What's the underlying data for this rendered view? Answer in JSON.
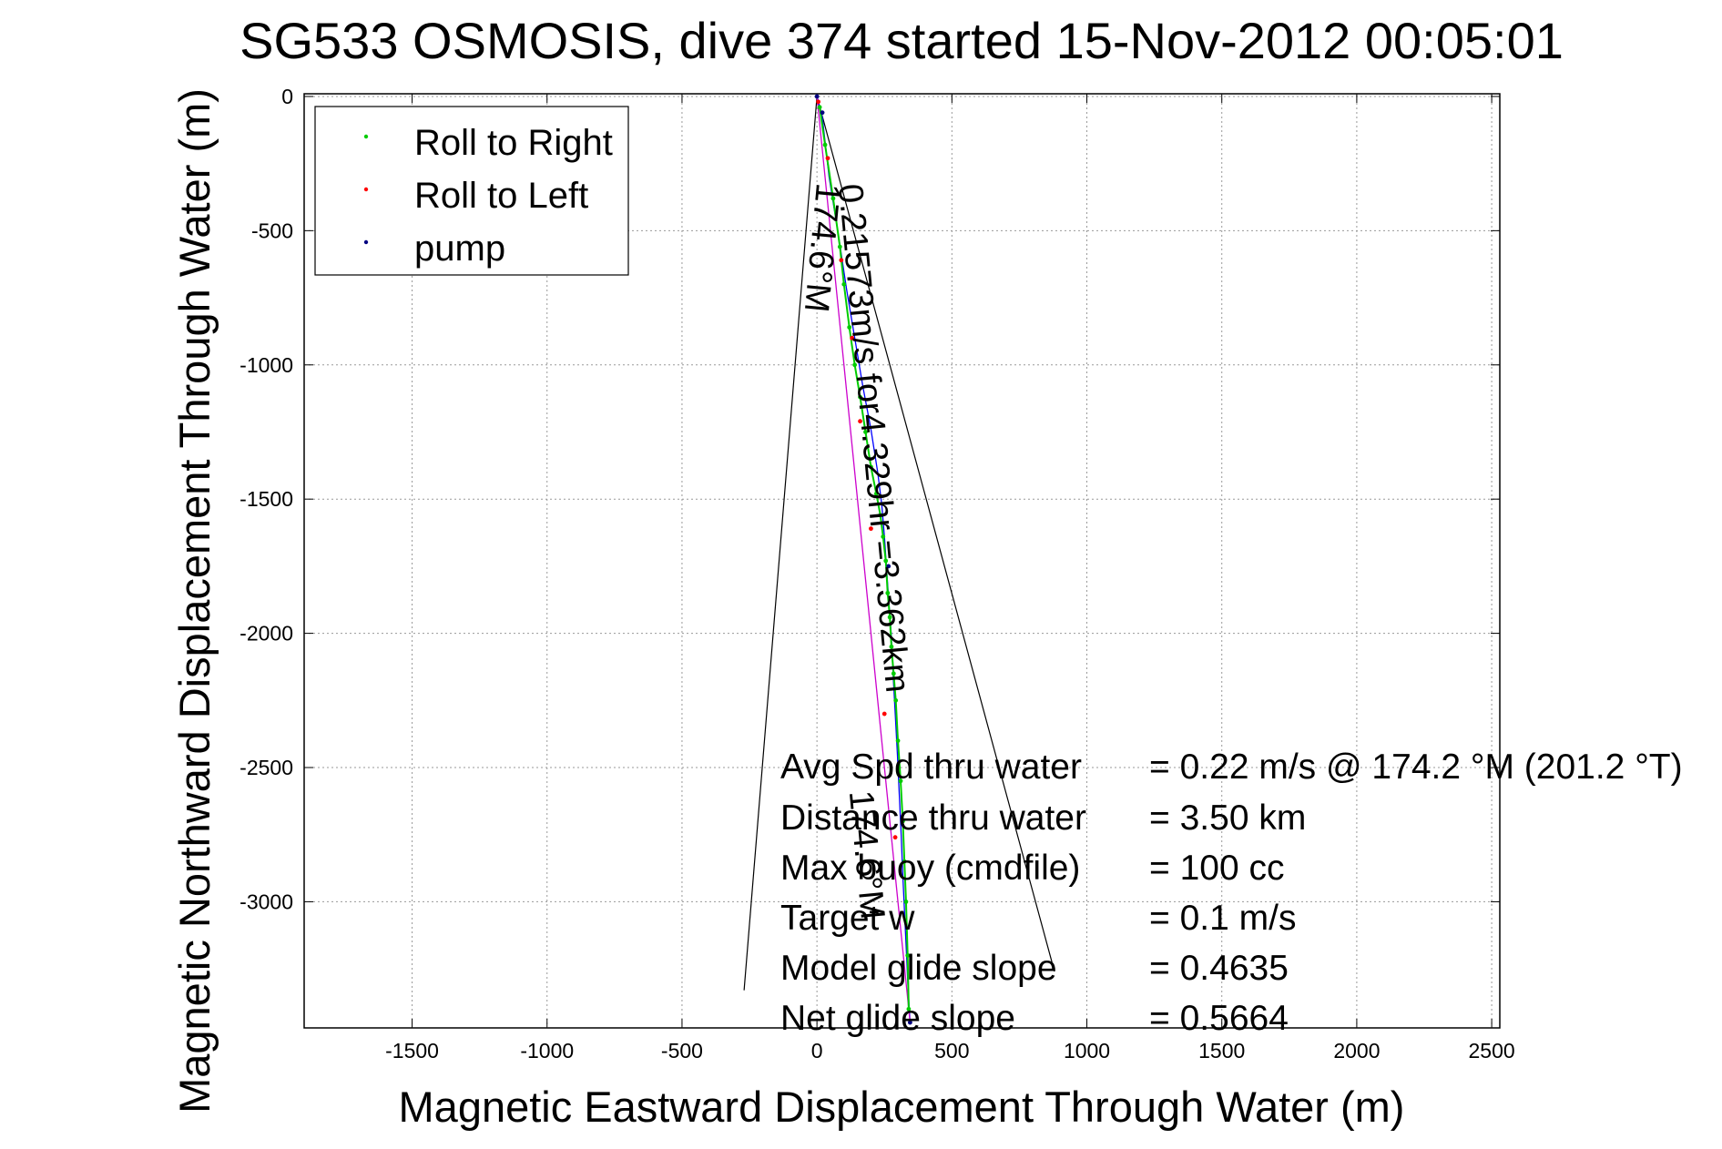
{
  "chart_data": {
    "type": "scatter",
    "title": "SG533 OSMOSIS, dive 374 started 15-Nov-2012 00:05:01",
    "xlabel": "Magnetic Eastward Displacement Through Water (m)",
    "ylabel": "Magnetic Northward Displacement Through Water (m)",
    "xlim": [
      -1900,
      2530
    ],
    "ylim": [
      -3470,
      10
    ],
    "x_ticks": [
      -1500,
      -1000,
      -500,
      0,
      500,
      1000,
      1500,
      2000,
      2500
    ],
    "y_ticks": [
      0,
      -500,
      -1000,
      -1500,
      -2000,
      -2500,
      -3000
    ],
    "x_tick_labels": [
      "-1500",
      "-1000",
      "-500",
      "0",
      "500",
      "1000",
      "1500",
      "2000",
      "2500"
    ],
    "y_tick_labels": [
      "0",
      "-500",
      "-1000",
      "-1500",
      "-2000",
      "-2500",
      "-3000"
    ],
    "grid": true,
    "legend_position": "top-left",
    "series": [
      {
        "name": "Roll to Right",
        "color": "#00cc00",
        "x": [
          10,
          30,
          60,
          85,
          100,
          120,
          140,
          160,
          180,
          200,
          220,
          235,
          245,
          255,
          262,
          270,
          276,
          284,
          292,
          300,
          310,
          318,
          324,
          330,
          336,
          340
        ],
        "y": [
          -40,
          -180,
          -380,
          -560,
          -700,
          -860,
          -1000,
          -1120,
          -1250,
          -1380,
          -1480,
          -1560,
          -1640,
          -1730,
          -1850,
          -1940,
          -2050,
          -2150,
          -2250,
          -2400,
          -2550,
          -2700,
          -2850,
          -3000,
          -3200,
          -3400
        ]
      },
      {
        "name": "Roll to Left",
        "color": "#ff0000",
        "x": [
          5,
          40,
          90,
          130,
          160,
          200,
          250,
          290
        ],
        "y": [
          -20,
          -230,
          -610,
          -900,
          -1210,
          -1610,
          -2300,
          -2760
        ]
      },
      {
        "name": "pump",
        "color": "#000080",
        "x": [
          0,
          20,
          265,
          345
        ],
        "y": [
          0,
          -60,
          -1750,
          -3450
        ]
      }
    ],
    "track_lines": [
      {
        "name": "glider track",
        "color": "#0000ff",
        "x": [
          0,
          20,
          45,
          80,
          110,
          140,
          170,
          200,
          225,
          240,
          250,
          258,
          266,
          275,
          282,
          290,
          298,
          305,
          312,
          318,
          325,
          332,
          338,
          345
        ],
        "y": [
          0,
          -80,
          -300,
          -520,
          -720,
          -900,
          -1080,
          -1240,
          -1400,
          -1520,
          -1640,
          -1760,
          -1880,
          -2000,
          -2150,
          -2300,
          -2450,
          -2600,
          -2750,
          -2900,
          -3050,
          -3200,
          -3330,
          -3450
        ]
      },
      {
        "name": "heading line",
        "color": "#cc00cc",
        "x": [
          0,
          345
        ],
        "y": [
          0,
          -3450
        ]
      }
    ],
    "cone_lines": {
      "color": "#000000",
      "apex": [
        0,
        0
      ],
      "ends": [
        [
          -270,
          -3330
        ],
        [
          880,
          -3260
        ]
      ]
    },
    "annotations": [
      {
        "text": "174.6°M",
        "x": 0,
        "y": -320,
        "rotation_deg": 95.4
      },
      {
        "text": "0.21573m/s for4.329hr =3.362km",
        "x": 80,
        "y": -330,
        "rotation_deg": 84.6
      },
      {
        "text": "174.6°M",
        "x": 120,
        "y": -2590,
        "rotation_deg": 84.6
      }
    ],
    "stats": [
      {
        "label": "Avg Spd thru water",
        "value": "=  0.22 m/s @ 174.2 °M (201.2 °T)"
      },
      {
        "label": "Distance thru water",
        "value": "=  3.50 km"
      },
      {
        "label": "Max buoy (cmdfile)",
        "value": "= 100 cc"
      },
      {
        "label": "Target w",
        "value": "= 0.1 m/s"
      },
      {
        "label": "Model glide slope",
        "value": "= 0.4635"
      },
      {
        "label": "Net glide slope",
        "value": "= 0.5664"
      }
    ]
  }
}
